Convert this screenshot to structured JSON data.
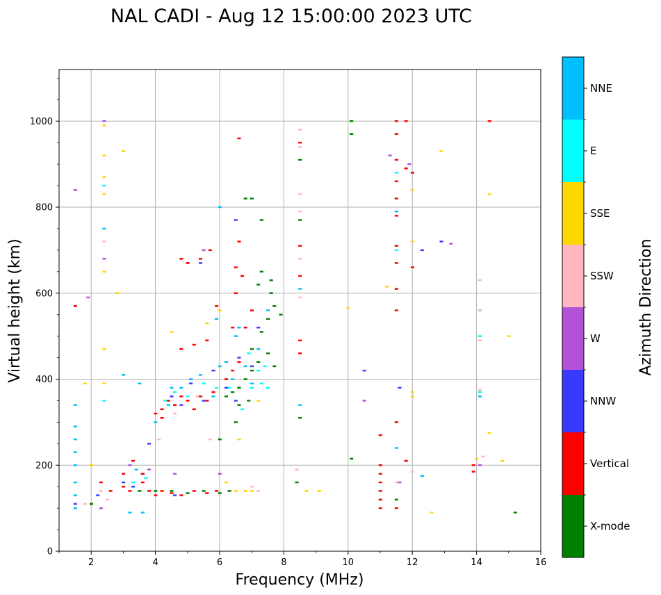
{
  "chart_data": {
    "type": "scatter",
    "title": "NAL CADI - Aug 12 15:00:00 2023 UTC",
    "xlabel": "Frequency (MHz)",
    "ylabel": "Virtual height (km)",
    "xlim": [
      1,
      16
    ],
    "ylim": [
      0,
      1120
    ],
    "xticks": [
      2,
      4,
      6,
      8,
      10,
      12,
      14,
      16
    ],
    "yticks": [
      0,
      200,
      400,
      600,
      800,
      1000
    ],
    "grid": true,
    "colorbar": {
      "label": "Azimuth Direction",
      "categories": [
        {
          "name": "X-mode",
          "color": "#008000"
        },
        {
          "name": "Vertical",
          "color": "#ff0000"
        },
        {
          "name": "NNW",
          "color": "#3a3aff"
        },
        {
          "name": "W",
          "color": "#b352d6"
        },
        {
          "name": "SSW",
          "color": "#ffb6c1"
        },
        {
          "name": "SSE",
          "color": "#ffd700"
        },
        {
          "name": "E",
          "color": "#00ffff"
        },
        {
          "name": "NNE",
          "color": "#00bfff"
        }
      ]
    },
    "series": [
      {
        "name": "NNE",
        "points": [
          [
            1.5,
            100
          ],
          [
            1.5,
            130
          ],
          [
            1.5,
            160
          ],
          [
            1.5,
            200
          ],
          [
            1.5,
            230
          ],
          [
            1.5,
            260
          ],
          [
            1.5,
            290
          ],
          [
            1.5,
            340
          ],
          [
            2.4,
            750
          ],
          [
            3.0,
            410
          ],
          [
            3.2,
            90
          ],
          [
            3.4,
            190
          ],
          [
            3.6,
            90
          ],
          [
            3.5,
            390
          ],
          [
            4.0,
            300
          ],
          [
            4.4,
            340
          ],
          [
            4.5,
            380
          ],
          [
            4.8,
            380
          ],
          [
            5.1,
            400
          ],
          [
            5.4,
            410
          ],
          [
            5.8,
            360
          ],
          [
            6.0,
            430
          ],
          [
            6.2,
            440
          ],
          [
            6.4,
            400
          ],
          [
            6.5,
            500
          ],
          [
            6.6,
            520
          ],
          [
            6.8,
            430
          ],
          [
            7.0,
            390
          ],
          [
            7.2,
            470
          ],
          [
            7.5,
            560
          ],
          [
            8.5,
            610
          ],
          [
            8.5,
            340
          ],
          [
            11.5,
            790
          ],
          [
            11.5,
            240
          ],
          [
            14.1,
            560
          ],
          [
            14.1,
            360
          ],
          [
            12.3,
            175
          ],
          [
            14.1,
            500
          ],
          [
            6.0,
            800
          ],
          [
            5.9,
            540
          ]
        ]
      },
      {
        "name": "E",
        "points": [
          [
            3.0,
            930
          ],
          [
            3.3,
            160
          ],
          [
            3.7,
            170
          ],
          [
            4.3,
            350
          ],
          [
            4.6,
            370
          ],
          [
            5.0,
            360
          ],
          [
            5.5,
            390
          ],
          [
            5.9,
            380
          ],
          [
            6.3,
            380
          ],
          [
            6.6,
            380
          ],
          [
            7.0,
            380
          ],
          [
            7.3,
            390
          ],
          [
            7.5,
            380
          ],
          [
            7.2,
            420
          ],
          [
            6.9,
            460
          ],
          [
            7.4,
            430
          ],
          [
            6.7,
            330
          ],
          [
            14.1,
            370
          ],
          [
            14.1,
            500
          ],
          [
            11.5,
            880
          ],
          [
            11.5,
            700
          ],
          [
            2.4,
            850
          ],
          [
            2.4,
            350
          ]
        ]
      },
      {
        "name": "SSE",
        "points": [
          [
            2.4,
            990
          ],
          [
            2.4,
            920
          ],
          [
            2.4,
            870
          ],
          [
            2.4,
            830
          ],
          [
            2.4,
            650
          ],
          [
            2.4,
            470
          ],
          [
            2.4,
            390
          ],
          [
            2.8,
            600
          ],
          [
            3.0,
            930
          ],
          [
            4.5,
            510
          ],
          [
            5.6,
            530
          ],
          [
            6.0,
            560
          ],
          [
            6.2,
            160
          ],
          [
            6.5,
            140
          ],
          [
            6.8,
            140
          ],
          [
            7.0,
            140
          ],
          [
            8.7,
            140
          ],
          [
            9.1,
            140
          ],
          [
            10.0,
            565
          ],
          [
            11.2,
            615
          ],
          [
            12.0,
            840
          ],
          [
            12.0,
            720
          ],
          [
            12.0,
            370
          ],
          [
            12.0,
            360
          ],
          [
            12.6,
            90
          ],
          [
            12.9,
            930
          ],
          [
            14.0,
            215
          ],
          [
            14.4,
            830
          ],
          [
            14.4,
            275
          ],
          [
            14.8,
            210
          ],
          [
            15.0,
            500
          ],
          [
            6.6,
            260
          ],
          [
            2.0,
            200
          ],
          [
            1.8,
            390
          ],
          [
            6.6,
            380
          ],
          [
            7.2,
            350
          ]
        ]
      },
      {
        "name": "SSW",
        "points": [
          [
            1.8,
            110
          ],
          [
            2.3,
            140
          ],
          [
            2.5,
            120
          ],
          [
            2.4,
            720
          ],
          [
            4.1,
            260
          ],
          [
            4.6,
            320
          ],
          [
            5.3,
            360
          ],
          [
            5.7,
            260
          ],
          [
            7.2,
            140
          ],
          [
            7.0,
            150
          ],
          [
            8.5,
            980
          ],
          [
            8.5,
            940
          ],
          [
            8.5,
            830
          ],
          [
            8.5,
            790
          ],
          [
            8.5,
            680
          ],
          [
            8.5,
            590
          ],
          [
            8.4,
            190
          ],
          [
            11.5,
            160
          ],
          [
            14.1,
            630
          ],
          [
            14.1,
            560
          ],
          [
            14.1,
            490
          ],
          [
            14.1,
            375
          ],
          [
            14.2,
            220
          ],
          [
            12.0,
            185
          ]
        ]
      },
      {
        "name": "W",
        "points": [
          [
            1.5,
            840
          ],
          [
            1.9,
            590
          ],
          [
            2.3,
            100
          ],
          [
            2.4,
            1000
          ],
          [
            2.4,
            680
          ],
          [
            3.8,
            190
          ],
          [
            4.6,
            180
          ],
          [
            5.0,
            670
          ],
          [
            5.5,
            700
          ],
          [
            6.0,
            180
          ],
          [
            10.5,
            350
          ],
          [
            11.3,
            920
          ],
          [
            11.6,
            160
          ],
          [
            11.9,
            900
          ],
          [
            13.2,
            715
          ],
          [
            14.4,
            1000
          ],
          [
            14.1,
            200
          ],
          [
            3.2,
            200
          ],
          [
            5.2,
            330
          ]
        ]
      },
      {
        "name": "NNW",
        "points": [
          [
            1.5,
            110
          ],
          [
            2.2,
            130
          ],
          [
            3.0,
            160
          ],
          [
            3.3,
            150
          ],
          [
            3.6,
            180
          ],
          [
            3.8,
            250
          ],
          [
            4.2,
            330
          ],
          [
            4.5,
            360
          ],
          [
            4.8,
            340
          ],
          [
            5.1,
            390
          ],
          [
            5.5,
            350
          ],
          [
            5.8,
            420
          ],
          [
            6.2,
            380
          ],
          [
            6.5,
            350
          ],
          [
            7.0,
            430
          ],
          [
            6.6,
            450
          ],
          [
            10.5,
            420
          ],
          [
            12.3,
            700
          ],
          [
            12.9,
            720
          ],
          [
            11.6,
            380
          ],
          [
            6.5,
            770
          ],
          [
            5.4,
            670
          ],
          [
            7.2,
            520
          ],
          [
            4.6,
            130
          ]
        ]
      },
      {
        "name": "Vertical",
        "points": [
          [
            1.5,
            570
          ],
          [
            2.0,
            110
          ],
          [
            2.3,
            160
          ],
          [
            2.6,
            140
          ],
          [
            3.0,
            150
          ],
          [
            3.0,
            180
          ],
          [
            3.2,
            140
          ],
          [
            3.3,
            210
          ],
          [
            3.6,
            160
          ],
          [
            3.8,
            140
          ],
          [
            4.0,
            130
          ],
          [
            4.2,
            140
          ],
          [
            4.5,
            135
          ],
          [
            4.8,
            130
          ],
          [
            5.2,
            140
          ],
          [
            5.6,
            135
          ],
          [
            5.9,
            140
          ],
          [
            4.0,
            320
          ],
          [
            4.2,
            330
          ],
          [
            4.4,
            350
          ],
          [
            4.6,
            340
          ],
          [
            4.8,
            360
          ],
          [
            5.0,
            350
          ],
          [
            5.2,
            330
          ],
          [
            5.4,
            360
          ],
          [
            5.6,
            350
          ],
          [
            5.8,
            370
          ],
          [
            6.2,
            400
          ],
          [
            6.4,
            420
          ],
          [
            6.6,
            440
          ],
          [
            6.4,
            520
          ],
          [
            6.5,
            600
          ],
          [
            6.7,
            640
          ],
          [
            6.5,
            660
          ],
          [
            6.6,
            720
          ],
          [
            4.8,
            470
          ],
          [
            5.2,
            480
          ],
          [
            5.6,
            490
          ],
          [
            4.8,
            680
          ],
          [
            5.0,
            670
          ],
          [
            5.4,
            680
          ],
          [
            5.7,
            700
          ],
          [
            6.6,
            960
          ],
          [
            6.8,
            520
          ],
          [
            7.0,
            560
          ],
          [
            8.5,
            950
          ],
          [
            8.5,
            710
          ],
          [
            8.5,
            640
          ],
          [
            8.5,
            490
          ],
          [
            8.5,
            460
          ],
          [
            11.0,
            270
          ],
          [
            11.0,
            200
          ],
          [
            11.0,
            180
          ],
          [
            11.0,
            160
          ],
          [
            11.0,
            140
          ],
          [
            11.0,
            120
          ],
          [
            11.0,
            100
          ],
          [
            11.5,
            1000
          ],
          [
            11.5,
            970
          ],
          [
            11.5,
            910
          ],
          [
            11.5,
            860
          ],
          [
            11.5,
            820
          ],
          [
            11.5,
            780
          ],
          [
            11.5,
            710
          ],
          [
            11.5,
            670
          ],
          [
            11.5,
            610
          ],
          [
            11.5,
            560
          ],
          [
            11.5,
            300
          ],
          [
            11.5,
            100
          ],
          [
            11.8,
            1000
          ],
          [
            11.8,
            890
          ],
          [
            12.0,
            880
          ],
          [
            12.0,
            660
          ],
          [
            11.8,
            210
          ],
          [
            13.9,
            200
          ],
          [
            13.9,
            185
          ],
          [
            14.4,
            1000
          ],
          [
            4.2,
            310
          ],
          [
            5.9,
            570
          ],
          [
            3.6,
            180
          ]
        ]
      },
      {
        "name": "X-mode",
        "points": [
          [
            2.0,
            110
          ],
          [
            3.5,
            140
          ],
          [
            4.0,
            140
          ],
          [
            4.5,
            140
          ],
          [
            5.0,
            135
          ],
          [
            5.5,
            140
          ],
          [
            6.0,
            135
          ],
          [
            6.3,
            140
          ],
          [
            6.0,
            260
          ],
          [
            6.2,
            360
          ],
          [
            6.4,
            370
          ],
          [
            6.6,
            380
          ],
          [
            6.8,
            400
          ],
          [
            7.0,
            420
          ],
          [
            7.2,
            440
          ],
          [
            6.6,
            340
          ],
          [
            7.0,
            470
          ],
          [
            7.3,
            510
          ],
          [
            7.5,
            540
          ],
          [
            7.6,
            600
          ],
          [
            7.7,
            570
          ],
          [
            7.9,
            550
          ],
          [
            7.2,
            620
          ],
          [
            7.3,
            650
          ],
          [
            7.6,
            630
          ],
          [
            6.8,
            820
          ],
          [
            7.0,
            820
          ],
          [
            7.3,
            770
          ],
          [
            8.5,
            910
          ],
          [
            8.5,
            770
          ],
          [
            8.5,
            310
          ],
          [
            8.4,
            160
          ],
          [
            10.1,
            1000
          ],
          [
            10.1,
            970
          ],
          [
            10.1,
            215
          ],
          [
            11.5,
            120
          ],
          [
            15.2,
            90
          ],
          [
            6.5,
            300
          ],
          [
            6.9,
            350
          ],
          [
            7.5,
            460
          ],
          [
            7.7,
            430
          ]
        ]
      }
    ]
  }
}
